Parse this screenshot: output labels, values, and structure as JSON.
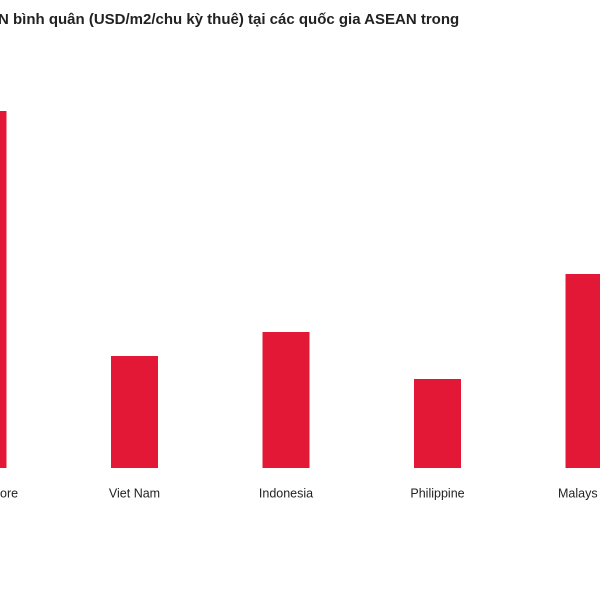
{
  "chart_data": {
    "type": "bar",
    "title": "N bình quân (USD/m2/chu kỳ thuê) tại các quốc gia ASEAN trong",
    "categories": [
      "ore",
      "Viet Nam",
      "Indonesia",
      "Philippine",
      "Malays"
    ],
    "values": [
      357,
      112,
      136,
      89,
      194
    ],
    "color": "#e31837"
  }
}
